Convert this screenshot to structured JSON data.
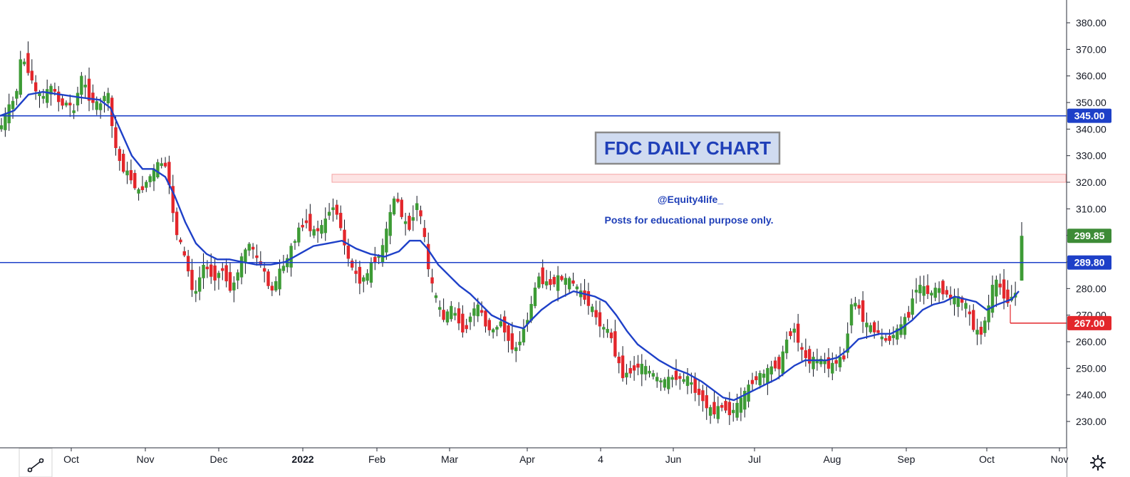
{
  "chart_data": {
    "type": "candlestick",
    "title": "FDC DAILY CHART",
    "annotations": [
      "@Equity4life_",
      "Posts for educational purpose only."
    ],
    "y_axis": {
      "range": [
        223,
        385
      ],
      "ticks": [
        "230.00",
        "240.00",
        "250.00",
        "260.00",
        "270.00",
        "280.00",
        "290.00",
        "300.00",
        "310.00",
        "320.00",
        "330.00",
        "340.00",
        "350.00",
        "360.00",
        "370.00",
        "380.00"
      ]
    },
    "x_axis": {
      "labels": [
        {
          "text": "Oct",
          "bold": false
        },
        {
          "text": "Nov",
          "bold": false
        },
        {
          "text": "Dec",
          "bold": false
        },
        {
          "text": "2022",
          "bold": true
        },
        {
          "text": "Feb",
          "bold": false
        },
        {
          "text": "Mar",
          "bold": false
        },
        {
          "text": "Apr",
          "bold": false
        },
        {
          "text": "4",
          "bold": false
        },
        {
          "text": "Jun",
          "bold": false
        },
        {
          "text": "Jul",
          "bold": false
        },
        {
          "text": "Aug",
          "bold": false
        },
        {
          "text": "Sep",
          "bold": false
        },
        {
          "text": "Oct",
          "bold": false
        },
        {
          "text": "Nov",
          "bold": false
        }
      ]
    },
    "horizontal_lines": [
      {
        "value": 345.0,
        "label": "345.00",
        "color": "#1e40c8"
      },
      {
        "value": 289.8,
        "label": "289.80",
        "color": "#1e40c8"
      },
      {
        "value": 267.0,
        "label": "267.00",
        "color": "#e3262b"
      }
    ],
    "last_price": {
      "value": 299.85,
      "label": "299.85",
      "color": "#3d8b37"
    },
    "supply_zone": [
      320,
      323
    ],
    "moving_average_color": "#1e40c8",
    "colors": {
      "up": "#3d9b35",
      "down": "#e3262b"
    },
    "close_path": [
      [
        0,
        340
      ],
      [
        10,
        347
      ],
      [
        22,
        352
      ],
      [
        30,
        368
      ],
      [
        40,
        362
      ],
      [
        50,
        354
      ],
      [
        60,
        352
      ],
      [
        72,
        356
      ],
      [
        85,
        349
      ],
      [
        95,
        350
      ],
      [
        105,
        346
      ],
      [
        112,
        361
      ],
      [
        125,
        352
      ],
      [
        140,
        348
      ],
      [
        150,
        356
      ],
      [
        160,
        335
      ],
      [
        170,
        326
      ],
      [
        180,
        323
      ],
      [
        195,
        316
      ],
      [
        210,
        322
      ],
      [
        225,
        328
      ],
      [
        235,
        325
      ],
      [
        245,
        303
      ],
      [
        255,
        295
      ],
      [
        265,
        286
      ],
      [
        272,
        276
      ],
      [
        285,
        289
      ],
      [
        300,
        284
      ],
      [
        312,
        287
      ],
      [
        325,
        279
      ],
      [
        340,
        292
      ],
      [
        350,
        297
      ],
      [
        358,
        292
      ],
      [
        370,
        287
      ],
      [
        380,
        278
      ],
      [
        392,
        286
      ],
      [
        405,
        292
      ],
      [
        418,
        302
      ],
      [
        430,
        305
      ],
      [
        440,
        301
      ],
      [
        455,
        304
      ],
      [
        465,
        312
      ],
      [
        475,
        307
      ],
      [
        485,
        294
      ],
      [
        495,
        287
      ],
      [
        505,
        283
      ],
      [
        515,
        285
      ],
      [
        525,
        291
      ],
      [
        535,
        293
      ],
      [
        545,
        305
      ],
      [
        555,
        316
      ],
      [
        565,
        306
      ],
      [
        575,
        303
      ],
      [
        585,
        313
      ],
      [
        595,
        300
      ],
      [
        602,
        285
      ],
      [
        612,
        276
      ],
      [
        622,
        268
      ],
      [
        632,
        273
      ],
      [
        642,
        269
      ],
      [
        652,
        263
      ],
      [
        662,
        272
      ],
      [
        672,
        273
      ],
      [
        682,
        266
      ],
      [
        692,
        264
      ],
      [
        702,
        268
      ],
      [
        712,
        262
      ],
      [
        722,
        256
      ],
      [
        732,
        262
      ],
      [
        745,
        273
      ],
      [
        755,
        285
      ],
      [
        765,
        282
      ],
      [
        775,
        282
      ],
      [
        785,
        284
      ],
      [
        795,
        283
      ],
      [
        805,
        282
      ],
      [
        815,
        278
      ],
      [
        825,
        275
      ],
      [
        835,
        270
      ],
      [
        845,
        265
      ],
      [
        855,
        264
      ],
      [
        865,
        254
      ],
      [
        875,
        247
      ],
      [
        885,
        249
      ],
      [
        895,
        251
      ],
      [
        905,
        250
      ],
      [
        915,
        248
      ],
      [
        925,
        245
      ],
      [
        935,
        245
      ],
      [
        945,
        247
      ],
      [
        955,
        246
      ],
      [
        965,
        246
      ],
      [
        975,
        242
      ],
      [
        985,
        239
      ],
      [
        995,
        234
      ],
      [
        1005,
        234
      ],
      [
        1015,
        236
      ],
      [
        1025,
        233
      ],
      [
        1035,
        236
      ],
      [
        1045,
        240
      ],
      [
        1055,
        245
      ],
      [
        1065,
        247
      ],
      [
        1075,
        248
      ],
      [
        1085,
        251
      ],
      [
        1095,
        251
      ],
      [
        1105,
        262
      ],
      [
        1115,
        265
      ],
      [
        1125,
        256
      ],
      [
        1135,
        253
      ],
      [
        1145,
        253
      ],
      [
        1155,
        253
      ],
      [
        1165,
        250
      ],
      [
        1175,
        253
      ],
      [
        1185,
        254
      ],
      [
        1195,
        275
      ],
      [
        1205,
        273
      ],
      [
        1215,
        266
      ],
      [
        1225,
        265
      ],
      [
        1235,
        262
      ],
      [
        1245,
        260
      ],
      [
        1255,
        263
      ],
      [
        1265,
        266
      ],
      [
        1275,
        270
      ],
      [
        1285,
        281
      ],
      [
        1295,
        280
      ],
      [
        1305,
        278
      ],
      [
        1315,
        280
      ],
      [
        1325,
        279
      ],
      [
        1335,
        276
      ],
      [
        1345,
        276
      ],
      [
        1355,
        274
      ],
      [
        1365,
        266
      ],
      [
        1375,
        262
      ],
      [
        1385,
        270
      ],
      [
        1395,
        283
      ],
      [
        1405,
        280
      ],
      [
        1413,
        275
      ],
      [
        1420,
        277
      ],
      [
        1428,
        279
      ],
      [
        1434,
        299.85
      ]
    ],
    "ma_path": [
      [
        0,
        345
      ],
      [
        20,
        347
      ],
      [
        40,
        353
      ],
      [
        60,
        354
      ],
      [
        85,
        353
      ],
      [
        110,
        352
      ],
      [
        140,
        351
      ],
      [
        155,
        348
      ],
      [
        170,
        339
      ],
      [
        185,
        330
      ],
      [
        200,
        325
      ],
      [
        215,
        325
      ],
      [
        232,
        322
      ],
      [
        245,
        315
      ],
      [
        260,
        305
      ],
      [
        275,
        297
      ],
      [
        290,
        293
      ],
      [
        305,
        291
      ],
      [
        322,
        291
      ],
      [
        340,
        290
      ],
      [
        360,
        289
      ],
      [
        380,
        289
      ],
      [
        400,
        290
      ],
      [
        420,
        293
      ],
      [
        440,
        296
      ],
      [
        460,
        297
      ],
      [
        480,
        298
      ],
      [
        500,
        295
      ],
      [
        520,
        293
      ],
      [
        540,
        292
      ],
      [
        560,
        294
      ],
      [
        575,
        298
      ],
      [
        590,
        298
      ],
      [
        600,
        295
      ],
      [
        615,
        289
      ],
      [
        630,
        285
      ],
      [
        645,
        281
      ],
      [
        660,
        278
      ],
      [
        675,
        274
      ],
      [
        690,
        270
      ],
      [
        705,
        268
      ],
      [
        720,
        266
      ],
      [
        735,
        265
      ],
      [
        745,
        268
      ],
      [
        760,
        272
      ],
      [
        775,
        275
      ],
      [
        790,
        277
      ],
      [
        805,
        279
      ],
      [
        820,
        278
      ],
      [
        835,
        277
      ],
      [
        850,
        275
      ],
      [
        865,
        270
      ],
      [
        880,
        264
      ],
      [
        895,
        259
      ],
      [
        910,
        256
      ],
      [
        925,
        253
      ],
      [
        945,
        250
      ],
      [
        965,
        248
      ],
      [
        985,
        245
      ],
      [
        1000,
        242
      ],
      [
        1015,
        239
      ],
      [
        1030,
        238
      ],
      [
        1045,
        240
      ],
      [
        1060,
        242
      ],
      [
        1075,
        244
      ],
      [
        1090,
        246
      ],
      [
        1100,
        248
      ],
      [
        1115,
        251
      ],
      [
        1130,
        253
      ],
      [
        1145,
        253
      ],
      [
        1160,
        253
      ],
      [
        1175,
        254
      ],
      [
        1190,
        257
      ],
      [
        1205,
        261
      ],
      [
        1220,
        262
      ],
      [
        1235,
        263
      ],
      [
        1250,
        263
      ],
      [
        1265,
        265
      ],
      [
        1280,
        268
      ],
      [
        1295,
        272
      ],
      [
        1310,
        274
      ],
      [
        1325,
        275
      ],
      [
        1340,
        277
      ],
      [
        1355,
        276
      ],
      [
        1370,
        275
      ],
      [
        1385,
        272
      ],
      [
        1400,
        274
      ],
      [
        1410,
        275
      ],
      [
        1420,
        276
      ],
      [
        1430,
        279
      ]
    ]
  }
}
